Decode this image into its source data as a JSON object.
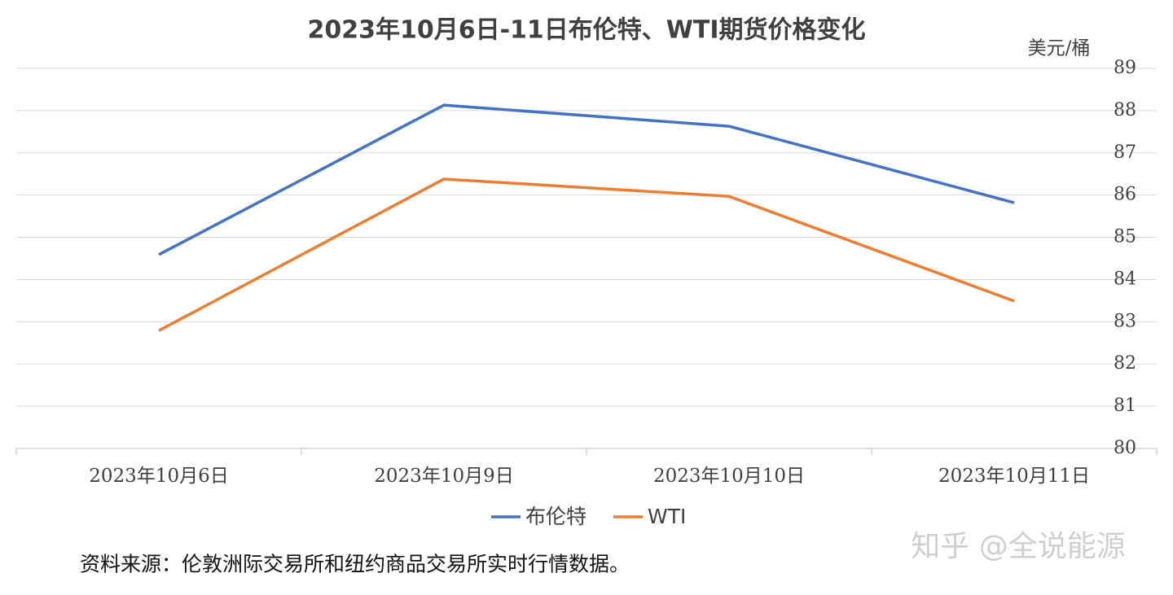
{
  "chart_data": {
    "type": "line",
    "title": "2023年10月6日-11日布伦特、WTI期货价格变化",
    "y_axis_label": "美元/桶",
    "categories": [
      "2023年10月6日",
      "2023年10月9日",
      "2023年10月10日",
      "2023年10月11日"
    ],
    "series": [
      {
        "name": "布伦特",
        "color": "#4472c4",
        "values": [
          84.59,
          88.13,
          87.63,
          85.82
        ]
      },
      {
        "name": "WTI",
        "color": "#ed7d31",
        "values": [
          82.79,
          86.38,
          85.97,
          83.49
        ]
      }
    ],
    "ylim": [
      80,
      89
    ],
    "yticks": [
      80,
      81,
      82,
      83,
      84,
      85,
      86,
      87,
      88,
      89
    ],
    "grid": true,
    "legend": "bottom"
  },
  "source_note": "资料来源：伦敦洲际交易所和纽约商品交易所实时行情数据。",
  "watermark": "知乎 @全说能源"
}
